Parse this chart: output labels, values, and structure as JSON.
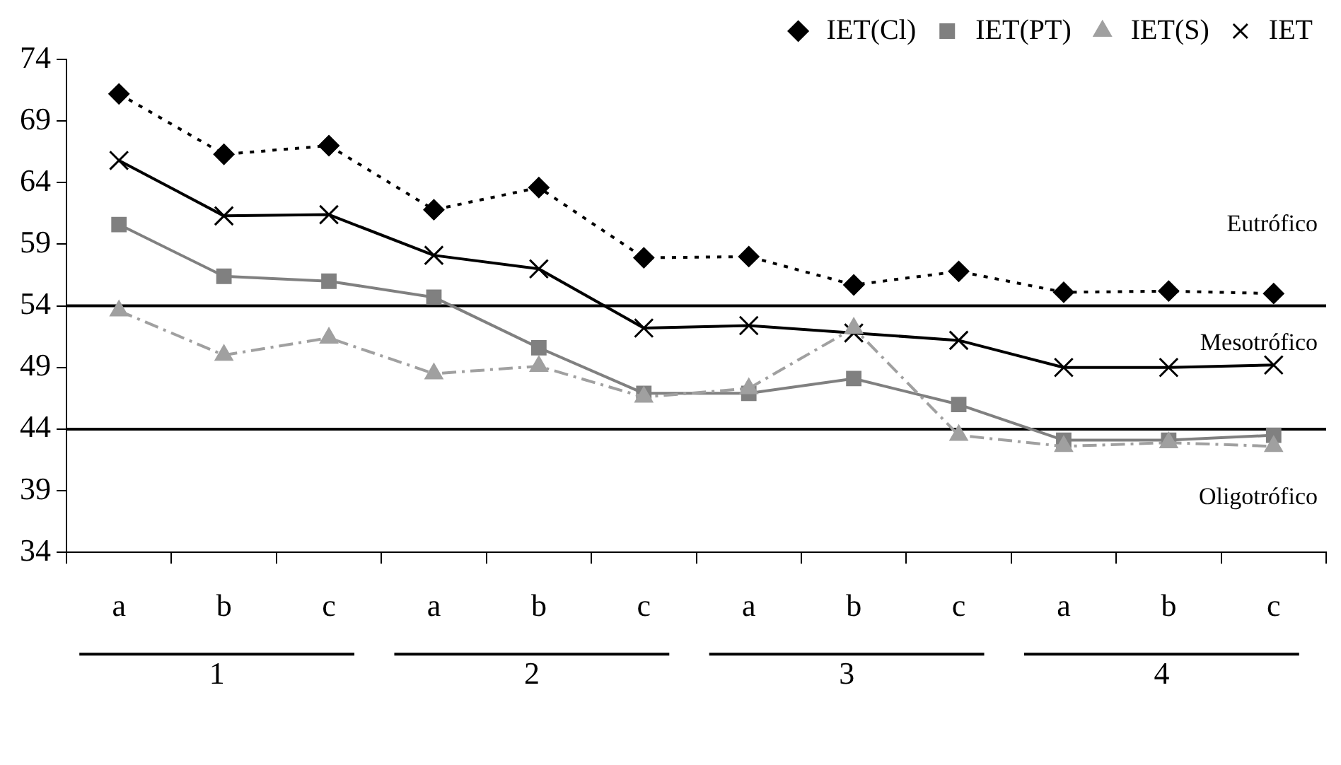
{
  "chart_data": {
    "type": "line",
    "categories": [
      "a",
      "b",
      "c",
      "a",
      "b",
      "c",
      "a",
      "b",
      "c",
      "a",
      "b",
      "c"
    ],
    "series": [
      {
        "name": "IET(Cl)",
        "color": "#000000",
        "marker": "diamond",
        "line_style": "dotted",
        "values": [
          71.2,
          66.3,
          67.0,
          61.8,
          63.6,
          57.9,
          58.0,
          55.7,
          56.8,
          55.1,
          55.2,
          55.0
        ]
      },
      {
        "name": "IET(PT)",
        "color": "#808080",
        "marker": "square",
        "line_style": "solid",
        "values": [
          60.6,
          56.4,
          56.0,
          54.7,
          50.6,
          46.9,
          46.9,
          48.1,
          46.0,
          43.1,
          43.1,
          43.5
        ]
      },
      {
        "name": "IET(S)",
        "color": "#a0a0a0",
        "marker": "triangle",
        "line_style": "dashed",
        "values": [
          53.6,
          50.0,
          51.4,
          48.5,
          49.1,
          46.6,
          47.3,
          52.2,
          43.5,
          42.6,
          42.9,
          42.6
        ]
      },
      {
        "name": "IET",
        "color": "#000000",
        "marker": "cross",
        "line_style": "solid",
        "values": [
          65.8,
          61.3,
          61.4,
          58.1,
          57.0,
          52.2,
          52.4,
          51.8,
          51.2,
          49.0,
          49.0,
          49.2
        ]
      }
    ],
    "ylim": [
      34,
      74
    ],
    "yticks": [
      34,
      39,
      44,
      49,
      54,
      59,
      64,
      69,
      74
    ],
    "grid": false,
    "legend": "top right",
    "ref_lines": [
      {
        "axis": "y",
        "value": 54,
        "color": "#000000",
        "label": "Mesotrófico"
      },
      {
        "axis": "y",
        "value": 44,
        "color": "#000000",
        "label": "Oligotrófico"
      }
    ],
    "annotations": [
      "Eutrófico",
      "1",
      "2",
      "3",
      "4"
    ]
  }
}
